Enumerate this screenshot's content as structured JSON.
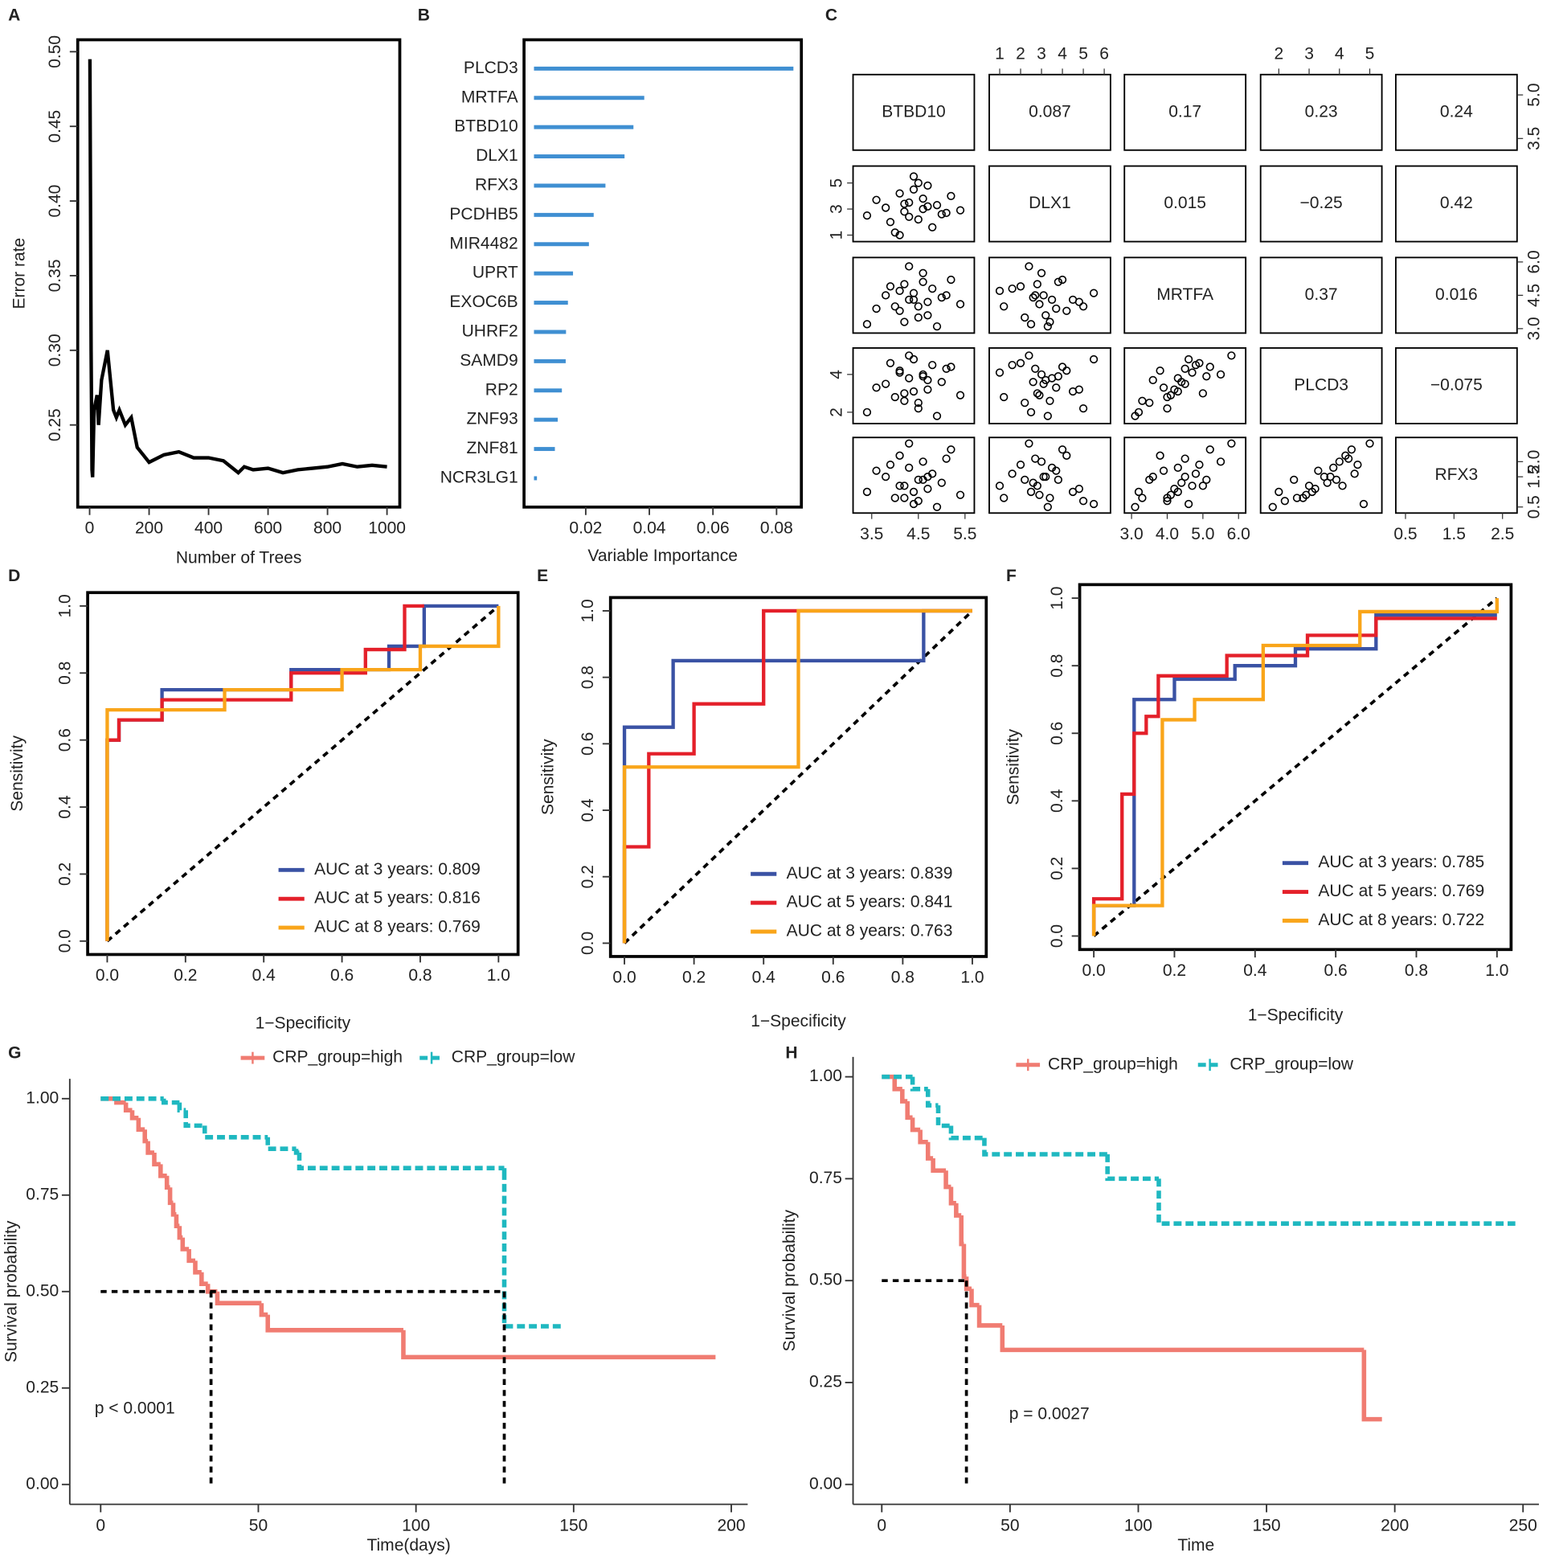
{
  "chart_data": [
    {
      "type": "line",
      "panel_label": "A",
      "xlabel": "Number of Trees",
      "ylabel": "Error rate",
      "x": [
        1,
        3,
        5,
        8,
        10,
        15,
        20,
        25,
        30,
        40,
        50,
        60,
        70,
        80,
        90,
        100,
        120,
        140,
        160,
        180,
        200,
        250,
        300,
        350,
        400,
        450,
        500,
        520,
        550,
        600,
        650,
        700,
        750,
        800,
        850,
        900,
        950,
        1000
      ],
      "values": [
        0.495,
        0.4,
        0.3,
        0.22,
        0.215,
        0.26,
        0.265,
        0.27,
        0.25,
        0.28,
        0.29,
        0.3,
        0.28,
        0.26,
        0.255,
        0.26,
        0.25,
        0.255,
        0.235,
        0.23,
        0.225,
        0.23,
        0.232,
        0.228,
        0.228,
        0.226,
        0.218,
        0.222,
        0.22,
        0.221,
        0.218,
        0.22,
        0.221,
        0.222,
        0.224,
        0.222,
        0.223,
        0.222
      ],
      "color": "#000000",
      "xlim": [
        -40,
        1043
      ],
      "ylim": [
        0.195,
        0.508
      ],
      "xticks": [
        0,
        200,
        400,
        600,
        800,
        1000
      ],
      "yticks": [
        0.25,
        {
          "value": 0.3,
          "label": "0.30"
        },
        0.35,
        {
          "value": 0.4,
          "label": "0.40"
        },
        0.45,
        {
          "value": 0.5,
          "label": "0.50"
        }
      ]
    },
    {
      "type": "hbar",
      "panel_label": "B",
      "xlabel": "Variable Importance",
      "categories": [
        "PLCD3",
        "MRTFA",
        "BTBD10",
        "DLX1",
        "RFX3",
        "PCDHB5",
        "MIR4482",
        "UPRT",
        "EXOC6B",
        "UHRF2",
        "SAMD9",
        "RP2",
        "ZNF93",
        "ZNF81",
        "NCR3LG1"
      ],
      "values": [
        0.0853,
        0.0384,
        0.035,
        0.0322,
        0.0262,
        0.0225,
        0.021,
        0.016,
        0.0144,
        0.0138,
        0.0137,
        0.0125,
        0.0112,
        0.0103,
        0.0044
      ],
      "color": "#3f8fd2",
      "xlim": [
        0.0006,
        0.0878
      ],
      "xticks": [
        0.02,
        0.04,
        0.06,
        0.08
      ]
    },
    {
      "type": "pairs",
      "panel_label": "C",
      "variables": [
        {
          "name": "BTBD10",
          "lim": [
            3.1,
            5.7
          ],
          "ticks": [
            3.5,
            4.5,
            5.5
          ],
          "row_ticks": [
            3.5,
            {
              "value": 5,
              "label": "5.0"
            }
          ],
          "values": [
            3.4,
            3.8,
            4.0,
            4.1,
            4.2,
            4.3,
            4.4,
            4.5,
            4.6,
            4.7,
            4.8,
            4.9,
            5.0,
            5.2,
            5.4,
            3.6,
            4.1,
            4.3,
            4.5,
            4.7,
            3.9,
            4.4,
            4.6,
            5.1,
            4.2
          ]
        },
        {
          "name": "DLX1",
          "lim": [
            0.5,
            6.3
          ],
          "ticks": [
            1,
            2,
            3,
            4,
            5,
            6
          ],
          "row_ticks": [
            1,
            3,
            5
          ],
          "values": [
            2.5,
            3.1,
            1.2,
            4.2,
            2.8,
            3.5,
            5.5,
            2.2,
            3.0,
            4.8,
            1.6,
            3.3,
            2.6,
            4.0,
            2.9,
            3.7,
            1.0,
            2.4,
            5.0,
            3.2,
            2.0,
            4.5,
            3.8,
            2.7,
            3.4
          ]
        },
        {
          "name": "MRTFA",
          "lim": [
            2.8,
            6.2
          ],
          "ticks": [
            {
              "value": 3,
              "label": "3.0"
            },
            {
              "value": 4,
              "label": "4.0"
            },
            {
              "value": 5,
              "label": "5.0"
            },
            {
              "value": 6,
              "label": "6.0"
            }
          ],
          "row_ticks": [
            {
              "value": 3,
              "label": "3.0"
            },
            4.5,
            {
              "value": 6,
              "label": "6.0"
            }
          ],
          "values": [
            3.2,
            4.5,
            4.0,
            3.8,
            5.0,
            4.3,
            4.6,
            3.5,
            5.5,
            4.2,
            4.8,
            3.1,
            4.4,
            5.2,
            4.1,
            3.9,
            4.7,
            5.8,
            4.0,
            3.6,
            4.9,
            4.3,
            5.1,
            4.5,
            3.3
          ]
        },
        {
          "name": "PLCD3",
          "lim": [
            1.4,
            5.4
          ],
          "ticks": [
            2,
            3,
            4,
            5
          ],
          "row_ticks": [
            2,
            4
          ],
          "values": [
            2.0,
            3.5,
            2.8,
            4.2,
            3.0,
            3.8,
            4.8,
            2.5,
            4.0,
            3.2,
            4.5,
            1.8,
            3.6,
            4.4,
            2.9,
            3.3,
            4.1,
            5.0,
            2.2,
            3.7,
            4.6,
            3.1,
            3.9,
            4.3,
            2.6
          ]
        },
        {
          "name": "RFX3",
          "lim": [
            0.3,
            2.8
          ],
          "ticks": [
            0.5,
            1.5,
            2.5
          ],
          "row_ticks": [
            0.5,
            1.5,
            {
              "value": 2,
              "label": "2.0"
            }
          ],
          "values": [
            1.0,
            1.5,
            0.8,
            2.2,
            1.2,
            1.8,
            0.6,
            1.4,
            2.0,
            1.1,
            1.6,
            0.5,
            1.3,
            2.4,
            0.9,
            1.7,
            1.2,
            2.6,
            0.7,
            1.5,
            1.9,
            1.0,
            1.4,
            2.1,
            0.8
          ]
        }
      ],
      "correlations": [
        [
          0.087,
          0.17,
          0.23,
          0.24
        ],
        [
          0.015,
          -0.25,
          0.42
        ],
        [
          0.37,
          0.016
        ],
        [
          -0.075
        ]
      ],
      "correlation_labels": [
        [
          "0.087",
          "0.17",
          "0.23",
          "0.24"
        ],
        [
          "0.015",
          "−0.25",
          "0.42"
        ],
        [
          "0.37",
          "0.016"
        ],
        [
          "−0.075"
        ]
      ]
    },
    {
      "type": "roc",
      "panel_label": "D",
      "xlabel": "1−Specificity",
      "ylabel": "Sensitivity",
      "xlim": [
        -0.05,
        1.05
      ],
      "ylim": [
        -0.04,
        1.04
      ],
      "xticks": [
        {
          "value": 0,
          "label": "0.0"
        },
        0.2,
        0.4,
        0.6,
        0.8,
        {
          "value": 1,
          "label": "1.0"
        }
      ],
      "yticks": [
        {
          "value": 0,
          "label": "0.0"
        },
        0.2,
        0.4,
        0.6,
        0.8,
        {
          "value": 1,
          "label": "1.0"
        }
      ],
      "legend": "bottom-right",
      "series": [
        {
          "name": "AUC at 3 years: 0.809",
          "color": "#3a52a4",
          "x": [
            0,
            0,
            0.03,
            0.03,
            0.14,
            0.14,
            0.47,
            0.47,
            0.72,
            0.72,
            0.81,
            0.81,
            1
          ],
          "values": [
            0,
            0.6,
            0.6,
            0.66,
            0.66,
            0.75,
            0.75,
            0.81,
            0.81,
            0.88,
            0.88,
            1,
            1
          ]
        },
        {
          "name": "AUC at 5 years: 0.816",
          "color": "#e4202a",
          "x": [
            0,
            0,
            0.03,
            0.03,
            0.14,
            0.14,
            0.47,
            0.47,
            0.66,
            0.66,
            0.76,
            0.76,
            0.81
          ],
          "values": [
            0,
            0.6,
            0.6,
            0.66,
            0.66,
            0.72,
            0.72,
            0.8,
            0.8,
            0.87,
            0.87,
            1,
            1
          ]
        },
        {
          "name": "AUC at 8 years: 0.769",
          "color": "#f9a51a",
          "x": [
            0,
            0,
            0.3,
            0.3,
            0.6,
            0.6,
            0.8,
            0.8,
            1,
            1
          ],
          "values": [
            0,
            0.69,
            0.69,
            0.75,
            0.75,
            0.81,
            0.81,
            0.88,
            0.88,
            1
          ]
        }
      ]
    },
    {
      "type": "roc",
      "panel_label": "E",
      "xlabel": "1−Specificity",
      "ylabel": "Sensitivity",
      "xlim": [
        -0.04,
        1.04
      ],
      "ylim": [
        -0.04,
        1.04
      ],
      "xticks": [
        {
          "value": 0,
          "label": "0.0"
        },
        0.2,
        0.4,
        0.6,
        0.8,
        {
          "value": 1,
          "label": "1.0"
        }
      ],
      "yticks": [
        {
          "value": 0,
          "label": "0.0"
        },
        0.2,
        0.4,
        0.6,
        0.8,
        {
          "value": 1,
          "label": "1.0"
        }
      ],
      "legend": "bottom-right",
      "series": [
        {
          "name": "AUC at 3 years: 0.839",
          "color": "#3a52a4",
          "x": [
            0,
            0,
            0.14,
            0.14,
            0.86,
            0.86,
            1
          ],
          "values": [
            0,
            0.65,
            0.65,
            0.85,
            0.85,
            1,
            1
          ]
        },
        {
          "name": "AUC at 5 years: 0.841",
          "color": "#e4202a",
          "x": [
            0,
            0,
            0.07,
            0.07,
            0.2,
            0.2,
            0.4,
            0.4,
            1
          ],
          "values": [
            0,
            0.29,
            0.29,
            0.57,
            0.57,
            0.72,
            0.72,
            1,
            1
          ]
        },
        {
          "name": "AUC at 8 years: 0.763",
          "color": "#f9a51a",
          "x": [
            0,
            0,
            0.5,
            0.5,
            1
          ],
          "values": [
            0,
            0.53,
            0.53,
            1,
            1
          ]
        }
      ]
    },
    {
      "type": "roc",
      "panel_label": "F",
      "xlabel": "1−Specificity",
      "ylabel": "Sensitivity",
      "xlim": [
        -0.035,
        1.035
      ],
      "ylim": [
        -0.04,
        1.04
      ],
      "xticks": [
        {
          "value": 0,
          "label": "0.0"
        },
        0.2,
        0.4,
        0.6,
        0.8,
        {
          "value": 1,
          "label": "1.0"
        }
      ],
      "yticks": [
        {
          "value": 0,
          "label": "0.0"
        },
        0.2,
        0.4,
        0.6,
        0.8,
        {
          "value": 1,
          "label": "1.0"
        }
      ],
      "legend": "bottom-right",
      "series": [
        {
          "name": "AUC at 3 years: 0.785",
          "color": "#3a52a4",
          "x": [
            0,
            0,
            0.1,
            0.1,
            0.2,
            0.2,
            0.35,
            0.35,
            0.5,
            0.5,
            0.7,
            0.7,
            1
          ],
          "values": [
            0,
            0.09,
            0.09,
            0.7,
            0.7,
            0.76,
            0.76,
            0.8,
            0.8,
            0.85,
            0.85,
            0.95,
            0.95
          ]
        },
        {
          "name": "AUC at 5 years: 0.769",
          "color": "#e4202a",
          "x": [
            0,
            0,
            0.07,
            0.07,
            0.1,
            0.1,
            0.13,
            0.13,
            0.16,
            0.16,
            0.33,
            0.33,
            0.53,
            0.53,
            0.7,
            0.7,
            1
          ],
          "values": [
            0,
            0.11,
            0.11,
            0.42,
            0.42,
            0.6,
            0.6,
            0.65,
            0.65,
            0.77,
            0.77,
            0.83,
            0.83,
            0.89,
            0.89,
            0.94,
            0.94
          ]
        },
        {
          "name": "AUC at 8 years: 0.722",
          "color": "#f9a51a",
          "x": [
            0,
            0,
            0.17,
            0.17,
            0.25,
            0.25,
            0.42,
            0.42,
            0.66,
            0.66,
            1,
            1
          ],
          "values": [
            0,
            0.09,
            0.09,
            0.64,
            0.64,
            0.7,
            0.7,
            0.86,
            0.86,
            0.96,
            0.96,
            1
          ]
        }
      ]
    },
    {
      "type": "km",
      "panel_label": "G",
      "xlabel": "Time(days)",
      "ylabel": "Survival probability",
      "annotation": "p < 0.0001",
      "xlim": [
        -9.8,
        205.2
      ],
      "ylim": [
        -0.0515,
        1.0515
      ],
      "xticks": [
        0,
        50,
        100,
        150,
        200
      ],
      "yticks": [
        {
          "value": 0,
          "label": "0.00"
        },
        0.25,
        {
          "value": 0.5,
          "label": "0.50"
        },
        0.75,
        {
          "value": 1,
          "label": "1.00"
        }
      ],
      "legend": "top",
      "median_level": 0.5,
      "median_times": [
        35,
        128
      ],
      "series": [
        {
          "name": "CRP_group=high",
          "color": "#f07c72",
          "linestyle": "solid",
          "x": [
            0,
            5,
            8,
            10,
            12,
            14,
            15,
            17,
            19,
            21,
            22,
            23,
            24,
            25,
            26,
            28,
            30,
            32,
            34,
            37,
            51,
            53,
            96,
            195
          ],
          "values": [
            1,
            0.99,
            0.97,
            0.95,
            0.92,
            0.89,
            0.86,
            0.83,
            0.8,
            0.77,
            0.73,
            0.7,
            0.67,
            0.64,
            0.61,
            0.58,
            0.55,
            0.52,
            0.5,
            0.47,
            0.44,
            0.4,
            0.33,
            0.33
          ]
        },
        {
          "name": "CRP_group=low",
          "color": "#1fb8c0",
          "linestyle": "dashed",
          "x": [
            0,
            20,
            25,
            27,
            33,
            53,
            62,
            63,
            128,
            128,
            146
          ],
          "values": [
            1,
            0.99,
            0.97,
            0.93,
            0.9,
            0.87,
            0.86,
            0.82,
            0.81,
            0.41,
            0.41
          ]
        }
      ]
    },
    {
      "type": "km",
      "panel_label": "H",
      "xlabel": "Time",
      "ylabel": "Survival probability",
      "annotation": "p = 0.0027",
      "xlim": [
        -11.2,
        256.2
      ],
      "ylim": [
        -0.0488,
        1.0488
      ],
      "xticks": [
        0,
        50,
        100,
        150,
        200,
        250
      ],
      "yticks": [
        {
          "value": 0,
          "label": "0.00"
        },
        0.25,
        {
          "value": 0.5,
          "label": "0.50"
        },
        0.75,
        {
          "value": 1,
          "label": "1.00"
        }
      ],
      "legend": "top",
      "median_level": 0.5,
      "median_times": [
        33
      ],
      "series": [
        {
          "name": "CRP_group=high",
          "color": "#f07c72",
          "linestyle": "solid",
          "x": [
            0,
            5,
            8,
            10,
            12,
            15,
            18,
            20,
            25,
            27,
            29,
            31,
            32,
            33,
            35,
            38,
            47,
            188,
            188,
            195
          ],
          "values": [
            1,
            0.97,
            0.94,
            0.9,
            0.87,
            0.84,
            0.8,
            0.77,
            0.73,
            0.69,
            0.66,
            0.59,
            0.51,
            0.48,
            0.44,
            0.39,
            0.33,
            0.33,
            0.16,
            0.16
          ]
        },
        {
          "name": "CRP_group=low",
          "color": "#1fb8c0",
          "linestyle": "dashed",
          "x": [
            0,
            12,
            18,
            22,
            27,
            40,
            88,
            108,
            108,
            247
          ],
          "values": [
            1,
            0.97,
            0.93,
            0.88,
            0.85,
            0.81,
            0.75,
            0.75,
            0.64,
            0.64
          ]
        }
      ]
    }
  ]
}
